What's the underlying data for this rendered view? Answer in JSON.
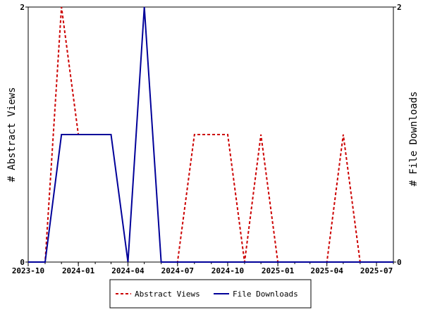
{
  "chart_data": {
    "type": "line",
    "title": "",
    "xlabel": "",
    "ylabel_left": "# Abstract Views",
    "ylabel_right": "# File Downloads",
    "x_ticks": [
      "2023-10",
      "2024-01",
      "2024-04",
      "2024-07",
      "2024-10",
      "2025-01",
      "2025-04",
      "2025-07"
    ],
    "y_ticks_left": [
      "0",
      "2"
    ],
    "y_ticks_right": [
      "0",
      "2"
    ],
    "ylim_left": [
      0,
      2
    ],
    "ylim_right": [
      0,
      2
    ],
    "xlim": [
      "2023-10-01",
      "2025-08-01"
    ],
    "grid": false,
    "legend_position": "bottom-center",
    "series": [
      {
        "name": "Abstract Views",
        "axis": "left",
        "color": "#cc0000",
        "dash": "dashed",
        "x": [
          "2023-10-01",
          "2023-11-01",
          "2023-12-01",
          "2024-01-01"
        ],
        "y": [
          0,
          0,
          2,
          1
        ],
        "segments": [
          {
            "x": [
              "2023-10-01",
              "2023-11-01",
              "2023-12-01",
              "2024-01-01"
            ],
            "y": [
              0,
              0,
              2,
              1
            ]
          },
          {
            "x": [
              "2024-06-01",
              "2024-07-01",
              "2024-08-01",
              "2024-09-01",
              "2024-10-01",
              "2024-11-01",
              "2024-12-01",
              "2025-01-01",
              "2025-02-01",
              "2025-03-01",
              "2025-04-01",
              "2025-05-01",
              "2025-06-01",
              "2025-07-01",
              "2025-08-01"
            ],
            "y": [
              0,
              0,
              1,
              1,
              1,
              0,
              1,
              0,
              0,
              0,
              0,
              1,
              0,
              0,
              0
            ]
          }
        ]
      },
      {
        "name": "File Downloads",
        "axis": "right",
        "color": "#000099",
        "dash": "solid",
        "x": [
          "2023-10-01",
          "2023-11-01",
          "2023-12-01",
          "2024-01-01",
          "2024-02-01",
          "2024-03-01",
          "2024-04-01",
          "2024-05-01",
          "2024-06-01",
          "2024-07-01",
          "2024-08-01",
          "2024-09-01",
          "2024-10-01",
          "2024-11-01",
          "2024-12-01",
          "2025-01-01",
          "2025-02-01",
          "2025-03-01",
          "2025-04-01",
          "2025-05-01",
          "2025-06-01",
          "2025-07-01",
          "2025-08-01"
        ],
        "y": [
          0,
          0,
          1,
          1,
          1,
          1,
          0,
          2,
          0,
          0,
          0,
          0,
          0,
          0,
          0,
          0,
          0,
          0,
          0,
          0,
          0,
          0,
          0
        ]
      }
    ]
  }
}
